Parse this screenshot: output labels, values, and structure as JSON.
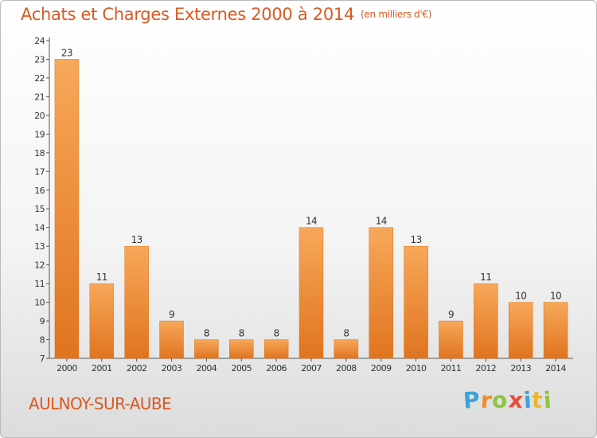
{
  "chart_data": {
    "type": "bar",
    "title": "Achats et Charges Externes 2000 à 2014",
    "unit": "(en milliers d'€)",
    "categories": [
      "2000",
      "2001",
      "2002",
      "2003",
      "2004",
      "2005",
      "2006",
      "2007",
      "2008",
      "2009",
      "2010",
      "2011",
      "2012",
      "2013",
      "2014"
    ],
    "values": [
      23,
      11,
      13,
      9,
      8,
      8,
      8,
      14,
      8,
      14,
      13,
      9,
      11,
      10,
      10
    ],
    "ylim": [
      7,
      24
    ],
    "yticks": [
      7,
      8,
      9,
      10,
      11,
      12,
      13,
      14,
      15,
      16,
      17,
      18,
      19,
      20,
      21,
      22,
      23,
      24
    ],
    "grid": false,
    "legend": "none",
    "bar_color": "#f08a2e",
    "bar_color_light": "#f7a85a",
    "bar_color_dark": "#e0741f"
  },
  "footer": {
    "commune": "AULNOY-SUR-AUBE",
    "brand_letters": [
      "P",
      "r",
      "o",
      "x",
      "i",
      "t",
      "i"
    ],
    "brand_colors": [
      "#3aa3d9",
      "#f08a2e",
      "#8dc63f",
      "#e94b3c",
      "#3aa3d9",
      "#f0b429",
      "#8dc63f"
    ]
  },
  "colors": {
    "accent": "#d95a22",
    "axis": "#555555"
  }
}
